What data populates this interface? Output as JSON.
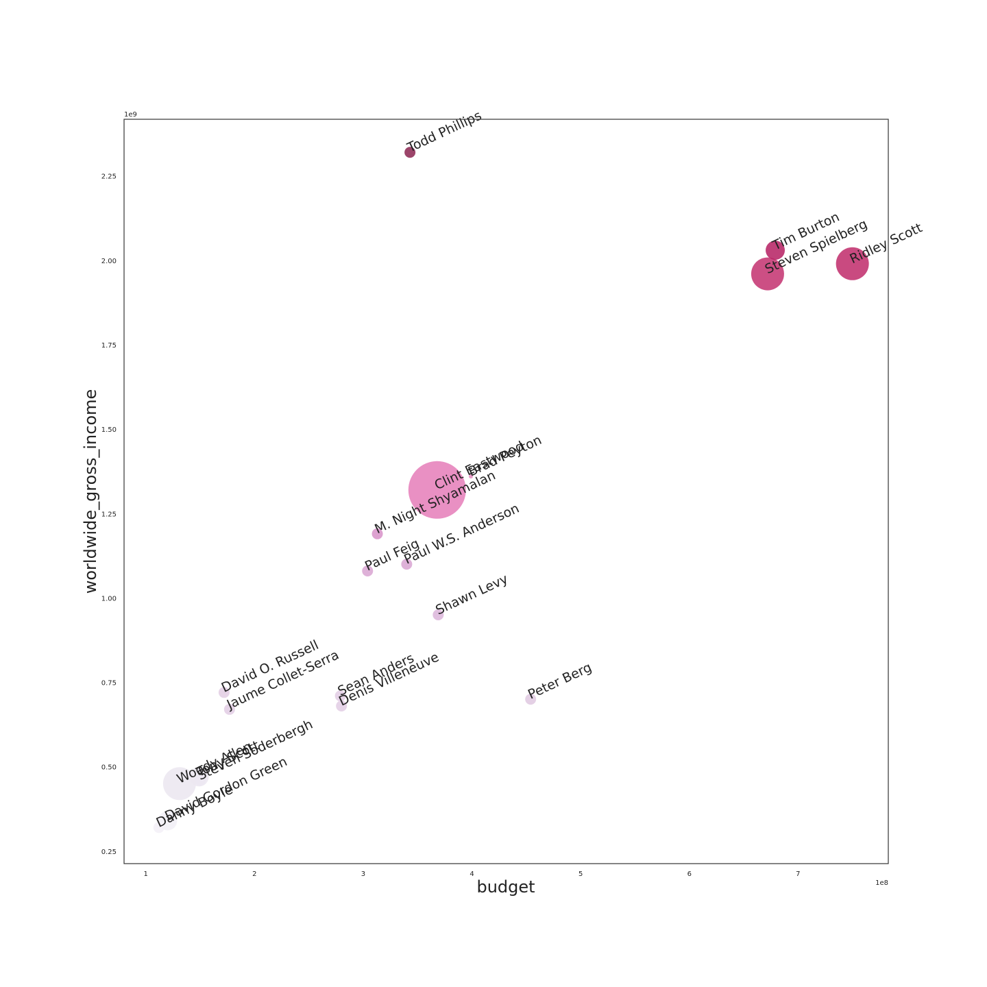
{
  "chart_data": {
    "type": "scatter",
    "title": "",
    "xlabel": "budget",
    "ylabel": "worldwide_gross_income",
    "x_offset_label": "1e8",
    "y_offset_label": "1e9",
    "xlim": [
      0.8,
      7.83
    ],
    "ylim": [
      0.213,
      2.418
    ],
    "xticks": [
      1,
      2,
      3,
      4,
      5,
      6,
      7
    ],
    "xtick_labels": [
      "1",
      "2",
      "3",
      "4",
      "5",
      "6",
      "7"
    ],
    "yticks": [
      0.25,
      0.5,
      0.75,
      1.0,
      1.25,
      1.5,
      1.75,
      2.0,
      2.25
    ],
    "ytick_labels": [
      "0.25",
      "0.50",
      "0.75",
      "1.00",
      "1.25",
      "1.50",
      "1.75",
      "2.00",
      "2.25"
    ],
    "grid": false,
    "legend": "none",
    "bubble_size_meaning": "larger bubble = larger value; color darkens with gross income",
    "points": [
      {
        "label": "Todd Phillips",
        "x": 3.43,
        "y": 2.32,
        "size": 8,
        "color": "#8b2550"
      },
      {
        "label": "Tim Burton",
        "x": 6.79,
        "y": 2.03,
        "size": 14,
        "color": "#b51f62"
      },
      {
        "label": "Steven Spielberg",
        "x": 6.72,
        "y": 1.96,
        "size": 24,
        "color": "#c3306e"
      },
      {
        "label": "Ridley Scott",
        "x": 7.5,
        "y": 1.99,
        "size": 24,
        "color": "#bf2a6a"
      },
      {
        "label": "Clint Eastwood",
        "x": 3.68,
        "y": 1.32,
        "size": 42,
        "color": "#e57cb9"
      },
      {
        "label": "Brad Peyton",
        "x": 3.99,
        "y": 1.36,
        "size": 3,
        "color": "#e58dc0"
      },
      {
        "label": "M. Night Shyamalan",
        "x": 3.13,
        "y": 1.19,
        "size": 8,
        "color": "#d790c8"
      },
      {
        "label": "Paul Feig",
        "x": 3.04,
        "y": 1.08,
        "size": 8,
        "color": "#d8a3d1"
      },
      {
        "label": "Paul W.S. Anderson",
        "x": 3.4,
        "y": 1.1,
        "size": 8,
        "color": "#d8a3d1"
      },
      {
        "label": "Shawn Levy",
        "x": 3.69,
        "y": 0.95,
        "size": 8,
        "color": "#dbb4d9"
      },
      {
        "label": "David O. Russell",
        "x": 1.72,
        "y": 0.72,
        "size": 8,
        "color": "#e2cce3"
      },
      {
        "label": "Jaume Collet-Serra",
        "x": 1.77,
        "y": 0.67,
        "size": 8,
        "color": "#e2cde4"
      },
      {
        "label": "Sean Anders",
        "x": 2.79,
        "y": 0.71,
        "size": 8,
        "color": "#e2cde4"
      },
      {
        "label": "Denis Villeneuve",
        "x": 2.8,
        "y": 0.68,
        "size": 8,
        "color": "#e2cde4"
      },
      {
        "label": "Peter Berg",
        "x": 4.54,
        "y": 0.7,
        "size": 8,
        "color": "#dfc8e1"
      },
      {
        "label": "Woody Allen",
        "x": 1.31,
        "y": 0.45,
        "size": 24,
        "color": "#ebe6f0"
      },
      {
        "label": "Tony Scott",
        "x": 1.49,
        "y": 0.47,
        "size": 14,
        "color": "#ece7f1"
      },
      {
        "label": "Steven Soderbergh",
        "x": 1.5,
        "y": 0.46,
        "size": 8,
        "color": "#ece7f1"
      },
      {
        "label": "David Gordon Green",
        "x": 1.2,
        "y": 0.34,
        "size": 14,
        "color": "#f1eef6"
      },
      {
        "label": "Danny Boyle",
        "x": 1.12,
        "y": 0.32,
        "size": 8,
        "color": "#f3f0f7"
      }
    ]
  }
}
